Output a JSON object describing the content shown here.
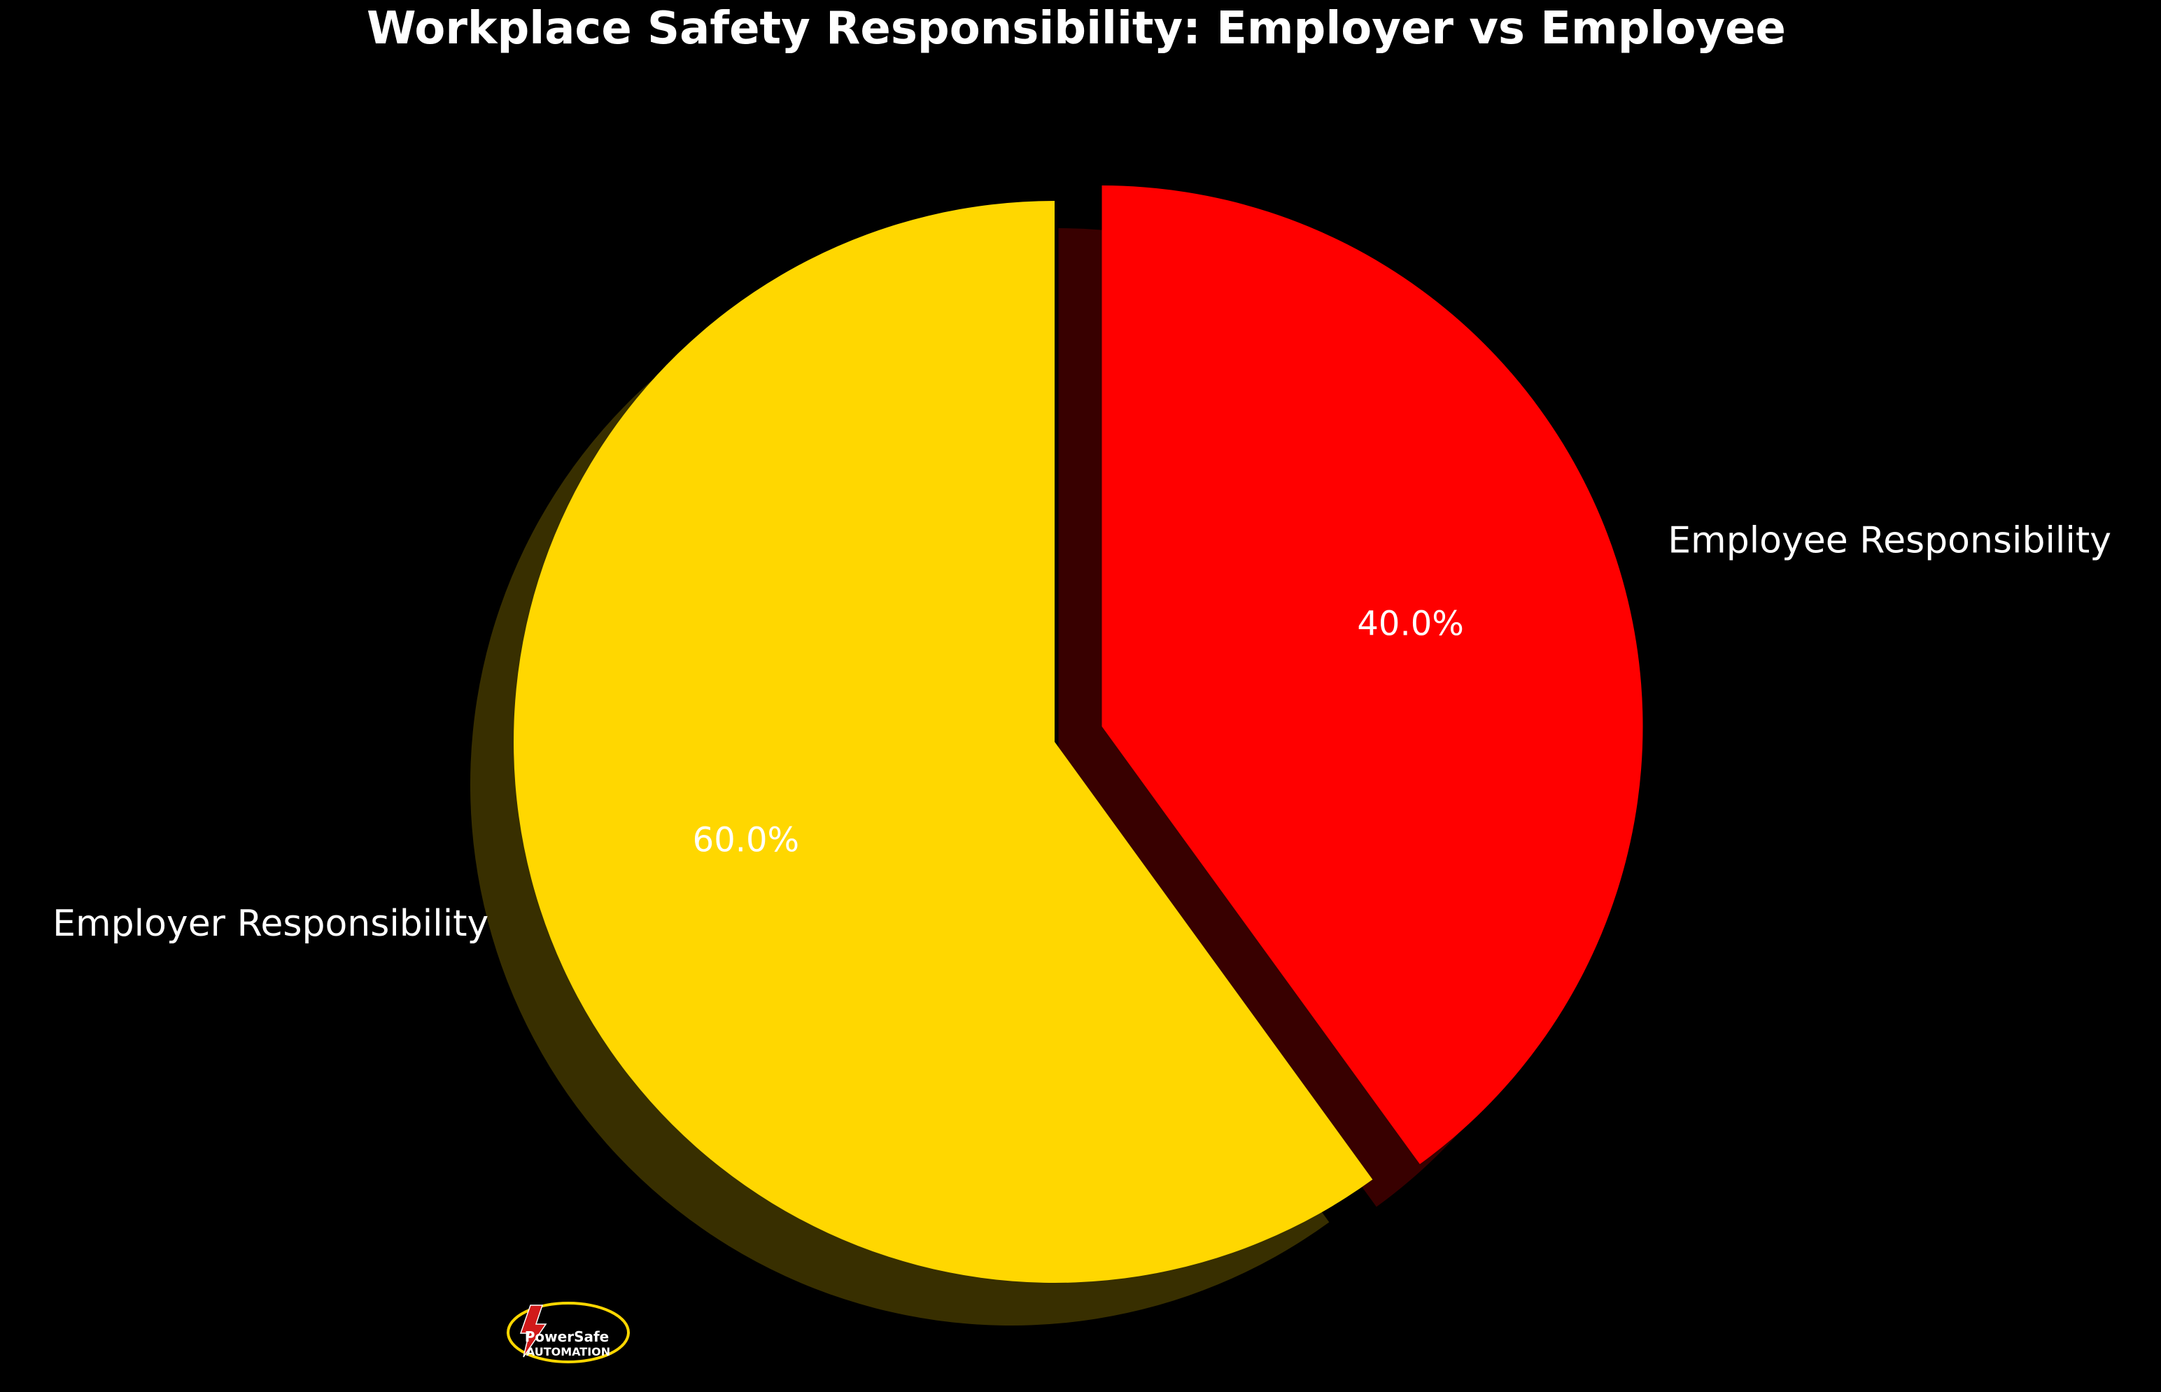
{
  "chart_data": {
    "type": "pie",
    "title": "Workplace Safety Responsibility: Employer vs Employee",
    "categories": [
      "Employer Responsibility",
      "Employee Responsibility"
    ],
    "values": [
      60,
      40
    ],
    "percent_labels": [
      "60.0%",
      "40.0%"
    ],
    "colors": [
      "#FFD700",
      "#FF0000"
    ],
    "exploded": [
      false,
      true
    ],
    "shadow": true,
    "start_angle_deg": 90,
    "direction": "counterclockwise"
  },
  "logo": {
    "icon": "lightning-bolt-icon",
    "line1": "PowerSafe",
    "line2": "AUTOMATION",
    "color": "#FFD700",
    "accent": "#D11A1A"
  },
  "theme": {
    "background": "#000000",
    "text": "#FFFFFF"
  }
}
